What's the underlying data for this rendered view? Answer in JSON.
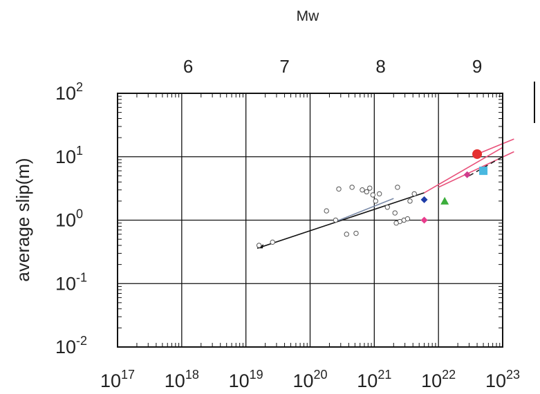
{
  "chart_data": {
    "type": "scatter",
    "x_scale": "log",
    "y_scale": "log",
    "top_axis_label": "Mw",
    "ylabel": "average slip(m)",
    "xlabel": "",
    "xlim": [
      1e+17,
      1e+23
    ],
    "ylim": [
      0.01,
      100
    ],
    "grid": true,
    "x_ticks": [
      {
        "value": 1e+17,
        "base": "10",
        "exp": "17"
      },
      {
        "value": 1e+18,
        "base": "10",
        "exp": "18"
      },
      {
        "value": 1e+19,
        "base": "10",
        "exp": "19"
      },
      {
        "value": 1e+20,
        "base": "10",
        "exp": "20"
      },
      {
        "value": 1e+21,
        "base": "10",
        "exp": "21"
      },
      {
        "value": 1e+22,
        "base": "10",
        "exp": "22"
      },
      {
        "value": 1e+23,
        "base": "10",
        "exp": "23"
      }
    ],
    "y_ticks": [
      {
        "value": 100,
        "base": "10",
        "exp": "2"
      },
      {
        "value": 10,
        "base": "10",
        "exp": "1"
      },
      {
        "value": 1,
        "base": "10",
        "exp": "0"
      },
      {
        "value": 0.1,
        "base": "10",
        "exp": "-1"
      },
      {
        "value": 0.01,
        "base": "10",
        "exp": "-2"
      }
    ],
    "top_ticks": [
      {
        "label": "6",
        "m0": 1.26e+18
      },
      {
        "label": "7",
        "m0": 4e+19
      },
      {
        "label": "8",
        "m0": 1.26e+21
      },
      {
        "label": "9",
        "m0": 4e+22
      }
    ],
    "series": [
      {
        "marker": "open-circle",
        "color": "#555555",
        "points": [
          [
            1.6e+19,
            0.4
          ],
          [
            2.6e+19,
            0.45
          ],
          [
            2.8e+20,
            3.1
          ],
          [
            4.5e+20,
            3.3
          ],
          [
            6.5e+20,
            3.0
          ],
          [
            7.6e+20,
            2.8
          ],
          [
            9.5e+20,
            2.5
          ],
          [
            8.5e+20,
            3.2
          ],
          [
            1.05e+21,
            2.0
          ],
          [
            1.2e+21,
            2.6
          ],
          [
            2.3e+21,
            3.3
          ],
          [
            1.6e+21,
            1.6
          ],
          [
            2.1e+21,
            1.3
          ],
          [
            2.5e+21,
            0.95
          ],
          [
            2.9e+21,
            1.0
          ],
          [
            3.6e+21,
            2.0
          ],
          [
            4.2e+21,
            2.6
          ],
          [
            1.8e+20,
            1.4
          ],
          [
            2.5e+20,
            1.0
          ],
          [
            3.7e+20,
            0.6
          ],
          [
            5.2e+20,
            0.62
          ],
          [
            2.2e+21,
            0.9
          ],
          [
            3.3e+21,
            1.05
          ]
        ]
      },
      {
        "marker": "filled-circle",
        "color": "#e53030",
        "points": [
          [
            4e+22,
            11
          ]
        ]
      },
      {
        "marker": "square",
        "color": "#4ab8e0",
        "points": [
          [
            5e+22,
            6.0
          ]
        ]
      },
      {
        "marker": "triangle",
        "color": "#3cae3c",
        "points": [
          [
            1.25e+22,
            2.0
          ]
        ]
      },
      {
        "marker": "diamond",
        "color": "#1e3ca8",
        "points": [
          [
            6e+21,
            2.1
          ]
        ]
      },
      {
        "marker": "diamond",
        "color": "#e83c8c",
        "points": [
          [
            6e+21,
            1.0
          ]
        ]
      },
      {
        "marker": "diamond",
        "color": "#d03c8c",
        "points": [
          [
            2.8e+22,
            5.2
          ]
        ]
      }
    ],
    "lines": [
      {
        "color": "#111111",
        "dash": "solid",
        "points": [
          [
            1.5e+19,
            0.36
          ],
          [
            6e+21,
            2.7
          ]
        ]
      },
      {
        "color": "#7a8aa8",
        "dash": "solid",
        "points": [
          [
            2.5e+20,
            0.95
          ],
          [
            2e+21,
            2.2
          ]
        ]
      },
      {
        "color": "#e8507a",
        "dash": "solid",
        "points": [
          [
            6e+21,
            2.7
          ],
          [
            1e+23,
            14
          ]
        ]
      },
      {
        "color": "#e8507a",
        "dash": "solid",
        "points": [
          [
            4e+22,
            11
          ],
          [
            1.5e+23,
            19
          ]
        ]
      },
      {
        "color": "#e8507a",
        "dash": "solid",
        "points": [
          [
            1e+22,
            3.3
          ],
          [
            1.5e+23,
            12
          ]
        ]
      },
      {
        "color": "#222222",
        "dash": "dashed",
        "points": [
          [
            3e+22,
            5.0
          ],
          [
            1e+23,
            10
          ]
        ]
      }
    ]
  }
}
